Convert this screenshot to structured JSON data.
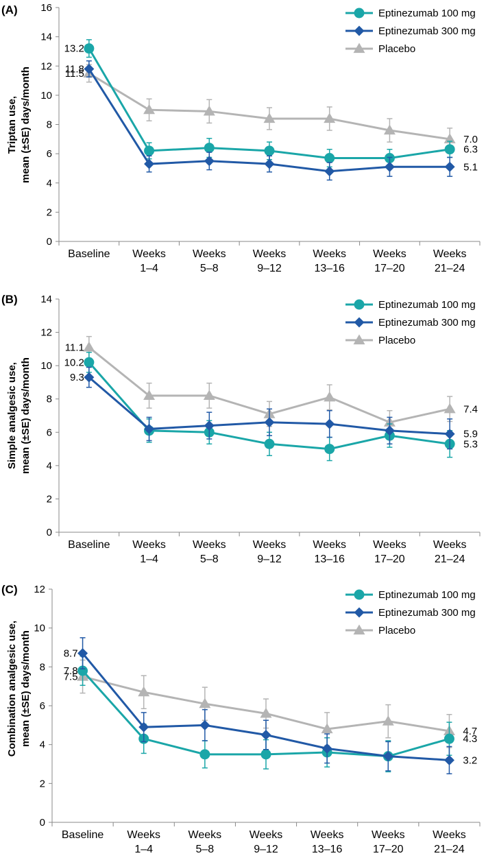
{
  "colors": {
    "teal": "#1aa6a8",
    "blue": "#2159a6",
    "gray": "#b4b4b4"
  },
  "chart_data": [
    {
      "type": "line",
      "panel_label": "(A)",
      "ylabel_line1": "Triptan use,",
      "ylabel_line2": "mean (±SE) days/month",
      "ylim": [
        0,
        16
      ],
      "yticks": [
        "0",
        "2",
        "4",
        "6",
        "8",
        "10",
        "12",
        "14",
        "16"
      ],
      "categories": [
        [
          "Baseline"
        ],
        [
          "Weeks",
          "1–4"
        ],
        [
          "Weeks",
          "5–8"
        ],
        [
          "Weeks",
          "9–12"
        ],
        [
          "Weeks",
          "13–16"
        ],
        [
          "Weeks",
          "17–20"
        ],
        [
          "Weeks",
          "21–24"
        ]
      ],
      "series": [
        {
          "name": "Eptinezumab 100 mg",
          "marker": "circle",
          "color": "#1aa6a8",
          "values": [
            13.2,
            6.2,
            6.4,
            6.2,
            5.7,
            5.7,
            6.3
          ],
          "errors": [
            0.6,
            0.55,
            0.65,
            0.6,
            0.6,
            0.6,
            0.55
          ]
        },
        {
          "name": "Eptinezumab 300 mg",
          "marker": "diamond",
          "color": "#2159a6",
          "values": [
            11.8,
            5.3,
            5.5,
            5.3,
            4.8,
            5.1,
            5.1
          ],
          "errors": [
            0.55,
            0.55,
            0.6,
            0.55,
            0.6,
            0.65,
            0.65
          ]
        },
        {
          "name": "Placebo",
          "marker": "triangle",
          "color": "#b4b4b4",
          "values": [
            11.5,
            9.0,
            8.9,
            8.4,
            8.4,
            7.6,
            7.0
          ],
          "errors": [
            0.6,
            0.75,
            0.8,
            0.75,
            0.8,
            0.8,
            0.75
          ]
        }
      ],
      "left_labels": [
        {
          "text": "13.2",
          "value": 13.2
        },
        {
          "text": "11.8",
          "value": 11.8
        },
        {
          "text": "11.5",
          "value": 11.5
        }
      ],
      "right_labels": [
        {
          "text": "7.0",
          "value": 7.0
        },
        {
          "text": "6.3",
          "value": 6.3
        },
        {
          "text": "5.1",
          "value": 5.1
        }
      ]
    },
    {
      "type": "line",
      "panel_label": "(B)",
      "ylabel_line1": "Simple analgesic use,",
      "ylabel_line2": "mean (±SE) days/month",
      "ylim": [
        0,
        14
      ],
      "yticks": [
        "0",
        "2",
        "4",
        "6",
        "8",
        "10",
        "12",
        "14"
      ],
      "categories": [
        [
          "Baseline"
        ],
        [
          "Weeks",
          "1–4"
        ],
        [
          "Weeks",
          "5–8"
        ],
        [
          "Weeks",
          "9–12"
        ],
        [
          "Weeks",
          "13–16"
        ],
        [
          "Weeks",
          "17–20"
        ],
        [
          "Weeks",
          "21–24"
        ]
      ],
      "series": [
        {
          "name": "Eptinezumab 100 mg",
          "marker": "circle",
          "color": "#1aa6a8",
          "values": [
            10.2,
            6.1,
            6.0,
            5.3,
            5.0,
            5.8,
            5.3
          ],
          "errors": [
            0.6,
            0.7,
            0.7,
            0.7,
            0.7,
            0.7,
            0.8
          ]
        },
        {
          "name": "Eptinezumab 300 mg",
          "marker": "diamond",
          "color": "#2159a6",
          "values": [
            9.3,
            6.2,
            6.4,
            6.6,
            6.5,
            6.1,
            5.9
          ],
          "errors": [
            0.6,
            0.7,
            0.8,
            0.8,
            0.8,
            0.8,
            0.9
          ]
        },
        {
          "name": "Placebo",
          "marker": "triangle",
          "color": "#b4b4b4",
          "values": [
            11.1,
            8.2,
            8.2,
            7.1,
            8.1,
            6.6,
            7.4
          ],
          "errors": [
            0.65,
            0.75,
            0.75,
            0.75,
            0.75,
            0.7,
            0.75
          ]
        }
      ],
      "left_labels": [
        {
          "text": "11.1",
          "value": 11.1
        },
        {
          "text": "10.2",
          "value": 10.2
        },
        {
          "text": "9.3",
          "value": 9.3
        }
      ],
      "right_labels": [
        {
          "text": "7.4",
          "value": 7.4
        },
        {
          "text": "5.9",
          "value": 5.9
        },
        {
          "text": "5.3",
          "value": 5.3
        }
      ]
    },
    {
      "type": "line",
      "panel_label": "(C)",
      "ylabel_line1": "Combination analgesic use,",
      "ylabel_line2": "mean (±SE) days/month",
      "ylim": [
        0,
        12
      ],
      "yticks": [
        "0",
        "2",
        "4",
        "6",
        "8",
        "10",
        "12"
      ],
      "categories": [
        [
          "Baseline"
        ],
        [
          "Weeks",
          "1–4"
        ],
        [
          "Weeks",
          "5–8"
        ],
        [
          "Weeks",
          "9–12"
        ],
        [
          "Weeks",
          "13–16"
        ],
        [
          "Weeks",
          "17–20"
        ],
        [
          "Weeks",
          "21–24"
        ]
      ],
      "series": [
        {
          "name": "Eptinezumab 100 mg",
          "marker": "circle",
          "color": "#1aa6a8",
          "values": [
            7.8,
            4.3,
            3.5,
            3.5,
            3.6,
            3.4,
            4.3
          ],
          "errors": [
            0.75,
            0.75,
            0.7,
            0.75,
            0.75,
            0.8,
            0.85
          ]
        },
        {
          "name": "Eptinezumab 300 mg",
          "marker": "diamond",
          "color": "#2159a6",
          "values": [
            8.7,
            4.9,
            5.0,
            4.5,
            3.8,
            3.4,
            3.2
          ],
          "errors": [
            0.8,
            0.75,
            0.8,
            0.75,
            0.75,
            0.75,
            0.7
          ]
        },
        {
          "name": "Placebo",
          "marker": "triangle",
          "color": "#b4b4b4",
          "values": [
            7.5,
            6.7,
            6.1,
            5.6,
            4.8,
            5.2,
            4.7
          ],
          "errors": [
            0.85,
            0.85,
            0.85,
            0.75,
            0.85,
            0.85,
            0.85
          ]
        }
      ],
      "left_labels": [
        {
          "text": "8.7",
          "value": 8.7
        },
        {
          "text": "7.8",
          "value": 7.8
        },
        {
          "text": "7.5",
          "value": 7.5
        }
      ],
      "right_labels": [
        {
          "text": "4.7",
          "value": 4.7
        },
        {
          "text": "4.3",
          "value": 4.3
        },
        {
          "text": "3.2",
          "value": 3.2
        }
      ]
    }
  ]
}
